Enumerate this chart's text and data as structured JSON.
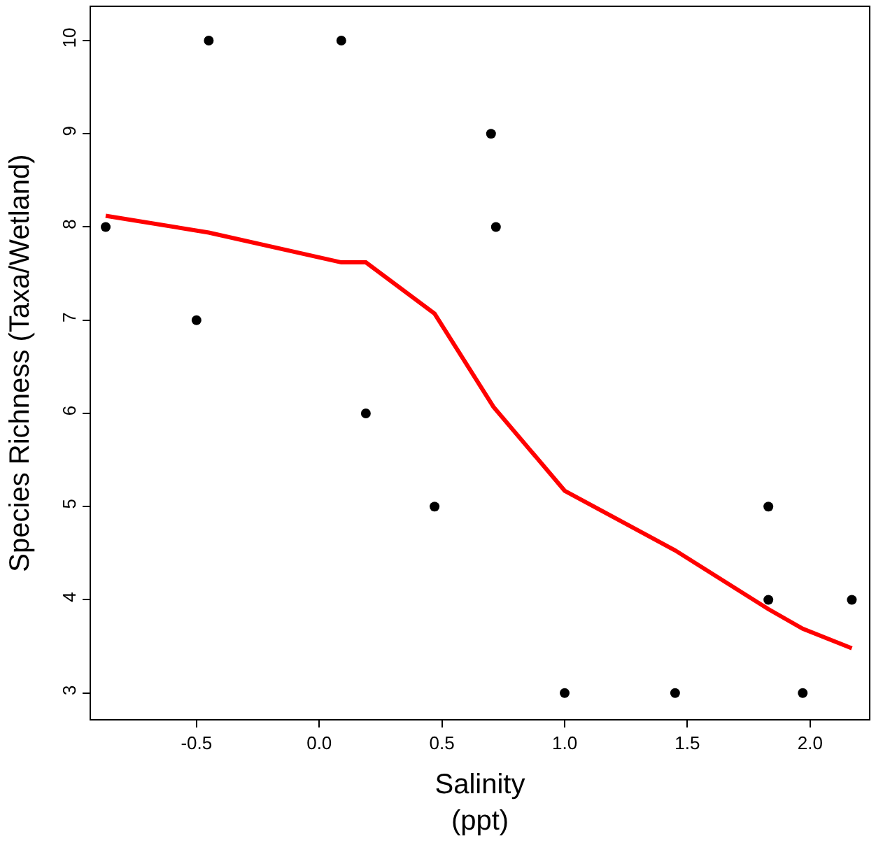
{
  "chart_data": {
    "type": "scatter",
    "xlabel": "Salinity\n(ppt)",
    "ylabel": "Species Richness (Taxa/Wetland)",
    "xlim": [
      -0.93,
      2.24
    ],
    "xticks": [
      -0.5,
      {
        "value": 0,
        "label": "0.0"
      },
      0.5,
      {
        "value": 1,
        "label": "1.0"
      },
      1.5,
      {
        "value": 2,
        "label": "2.0"
      }
    ],
    "ylim": [
      2.72,
      10.36
    ],
    "yticks": [
      3,
      4,
      5,
      6,
      7,
      8,
      9,
      10
    ],
    "series": [
      {
        "marker": "circle",
        "color": "#000000",
        "x": [
          -0.87,
          -0.45,
          -0.5,
          0.09,
          0.19,
          0.47,
          0.7,
          0.72,
          1.0,
          1.45,
          1.83,
          1.83,
          1.97,
          2.17
        ],
        "values": [
          8,
          10,
          7,
          10,
          6,
          5,
          9,
          8,
          3,
          3,
          5,
          4,
          3,
          4
        ]
      },
      {
        "type": "line",
        "color": "#ff0000",
        "line_style": "solid",
        "x": [
          -0.87,
          -0.45,
          0.09,
          0.19,
          0.47,
          0.71,
          1.0,
          1.45,
          1.83,
          1.97,
          2.17
        ],
        "values": [
          8.12,
          7.94,
          7.62,
          7.62,
          7.07,
          6.07,
          5.17,
          4.53,
          3.9,
          3.69,
          3.48
        ]
      }
    ]
  }
}
